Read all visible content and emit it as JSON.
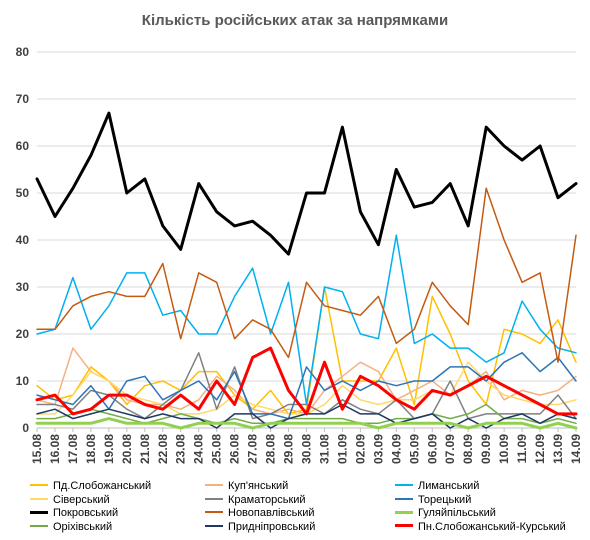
{
  "chart_data": {
    "type": "line",
    "title": "Кількість російських атак за напрямками",
    "xlabel": "",
    "ylabel": "",
    "ylim": [
      0,
      80
    ],
    "yticks": [
      0,
      10,
      20,
      30,
      40,
      50,
      60,
      70,
      80
    ],
    "grid": true,
    "legend_position": "bottom",
    "categories": [
      "15.08",
      "16.08",
      "17.08",
      "18.08",
      "19.08",
      "20.08",
      "21.08",
      "22.08",
      "23.08",
      "24.08",
      "25.08",
      "26.08",
      "27.08",
      "28.08",
      "29.08",
      "30.08",
      "31.08",
      "01.09",
      "02.09",
      "03.09",
      "04.09",
      "05.09",
      "06.09",
      "07.09",
      "08.09",
      "09.09",
      "10.09",
      "11.09",
      "12.09",
      "13.09",
      "14.09"
    ],
    "series": [
      {
        "name": "Пд.Слобожанський",
        "color": "#ffc000",
        "width": 1.5,
        "values": [
          9,
          6,
          7,
          13,
          10,
          5,
          9,
          10,
          8,
          12,
          12,
          7,
          4,
          8,
          3,
          4,
          30,
          10,
          10,
          10,
          17,
          5,
          28,
          20,
          10,
          5,
          21,
          20,
          18,
          23,
          14
        ]
      },
      {
        "name": "Куп'янський",
        "color": "#f4b183",
        "width": 1.5,
        "values": [
          6,
          5,
          17,
          12,
          10,
          6,
          5,
          5,
          4,
          6,
          11,
          8,
          4,
          3,
          4,
          3,
          8,
          11,
          14,
          12,
          6,
          8,
          10,
          7,
          9,
          12,
          6,
          8,
          7,
          8,
          11
        ]
      },
      {
        "name": "Лиманський",
        "color": "#00b0f0",
        "width": 1.5,
        "values": [
          20,
          21,
          32,
          21,
          26,
          33,
          33,
          24,
          25,
          20,
          20,
          28,
          34,
          20,
          31,
          5,
          30,
          29,
          20,
          19,
          41,
          18,
          20,
          17,
          17,
          14,
          16,
          27,
          21,
          17,
          16
        ]
      },
      {
        "name": "Сіверський",
        "color": "#ffd966",
        "width": 1.5,
        "values": [
          3,
          3,
          7,
          12,
          10,
          7,
          6,
          5,
          3,
          3,
          4,
          7,
          5,
          4,
          3,
          3,
          5,
          9,
          6,
          5,
          6,
          6,
          8,
          7,
          14,
          10,
          7,
          6,
          5,
          5,
          6
        ]
      },
      {
        "name": "Краматорський",
        "color": "#808080",
        "width": 1.5,
        "values": [
          5,
          5,
          4,
          8,
          7,
          4,
          2,
          5,
          8,
          16,
          4,
          13,
          2,
          3,
          5,
          5,
          3,
          6,
          4,
          3,
          6,
          2,
          3,
          10,
          2,
          3,
          3,
          3,
          3,
          7,
          2
        ]
      },
      {
        "name": "Торецький",
        "color": "#2e75b6",
        "width": 1.5,
        "values": [
          7,
          6,
          5,
          9,
          4,
          10,
          11,
          6,
          8,
          10,
          6,
          12,
          3,
          3,
          2,
          13,
          8,
          10,
          8,
          10,
          9,
          10,
          10,
          13,
          13,
          10,
          14,
          16,
          12,
          15,
          10
        ]
      },
      {
        "name": "Покровський",
        "color": "#000000",
        "width": 3,
        "values": [
          53,
          45,
          51,
          58,
          67,
          50,
          53,
          43,
          38,
          52,
          46,
          43,
          44,
          41,
          37,
          50,
          50,
          64,
          46,
          39,
          55,
          47,
          48,
          52,
          43,
          64,
          60,
          57,
          60,
          49,
          52
        ]
      },
      {
        "name": "Новопавлівський",
        "color": "#c55a11",
        "width": 1.5,
        "values": [
          21,
          21,
          26,
          28,
          29,
          28,
          28,
          35,
          19,
          33,
          31,
          19,
          23,
          21,
          15,
          31,
          26,
          25,
          24,
          28,
          18,
          21,
          31,
          26,
          22,
          51,
          40,
          31,
          33,
          14,
          41
        ]
      },
      {
        "name": "Гуляйпільський",
        "color": "#92d050",
        "width": 3,
        "values": [
          1,
          1,
          1,
          1,
          2,
          1,
          1,
          1,
          0,
          1,
          1,
          1,
          0,
          1,
          1,
          1,
          1,
          1,
          1,
          0,
          1,
          1,
          1,
          1,
          0,
          1,
          1,
          1,
          0,
          1,
          0
        ]
      },
      {
        "name": "Оріхівський",
        "color": "#70ad47",
        "width": 1.5,
        "values": [
          2,
          2,
          3,
          4,
          3,
          2,
          1,
          2,
          3,
          2,
          1,
          2,
          1,
          1,
          2,
          2,
          2,
          2,
          1,
          1,
          2,
          2,
          3,
          2,
          3,
          5,
          2,
          2,
          1,
          2,
          1
        ]
      },
      {
        "name": "Придніпровський",
        "color": "#1f3864",
        "width": 1.5,
        "values": [
          3,
          4,
          2,
          3,
          4,
          3,
          2,
          3,
          2,
          2,
          0,
          3,
          3,
          0,
          2,
          3,
          3,
          5,
          3,
          3,
          1,
          2,
          3,
          0,
          2,
          0,
          2,
          3,
          1,
          3,
          2
        ]
      },
      {
        "name": "Пн.Слобожанський-Курський",
        "color": "#ff0000",
        "width": 3,
        "values": [
          6,
          7,
          3,
          4,
          7,
          7,
          5,
          4,
          7,
          4,
          10,
          5,
          15,
          17,
          8,
          3,
          14,
          4,
          11,
          9,
          6,
          4,
          8,
          7,
          9,
          11,
          9,
          7,
          5,
          3,
          3
        ]
      }
    ]
  }
}
